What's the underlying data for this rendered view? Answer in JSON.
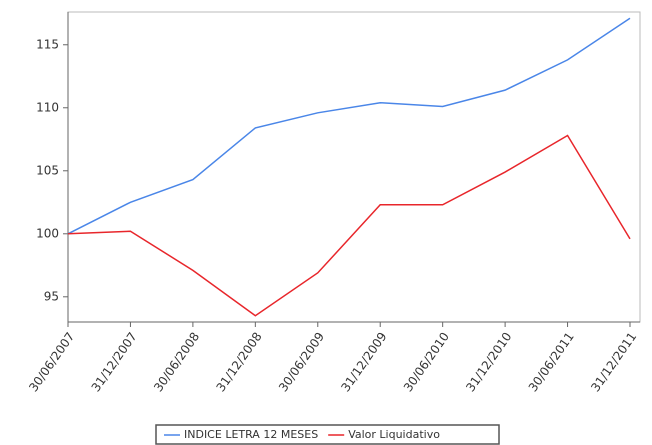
{
  "chart_data": {
    "type": "line",
    "categories": [
      "30/06/2007",
      "31/12/2007",
      "30/06/2008",
      "31/12/2008",
      "30/06/2009",
      "31/12/2009",
      "30/06/2010",
      "31/12/2010",
      "30/06/2011",
      "31/12/2011"
    ],
    "series": [
      {
        "name": "INDICE LETRA 12 MESES",
        "color": "#4a86e8",
        "values": [
          100,
          102.5,
          104.3,
          108.4,
          109.6,
          110.4,
          110.1,
          111.4,
          113.8,
          117.1
        ]
      },
      {
        "name": "Valor Liquidativo",
        "color": "#e8262b",
        "values": [
          100,
          100.2,
          97.1,
          93.5,
          96.9,
          102.3,
          102.3,
          104.9,
          107.8,
          99.6
        ]
      }
    ],
    "ylim": [
      93,
      117.6
    ],
    "yticks": [
      95,
      100,
      105,
      110,
      115
    ],
    "grid": false,
    "legend": "bottom"
  }
}
